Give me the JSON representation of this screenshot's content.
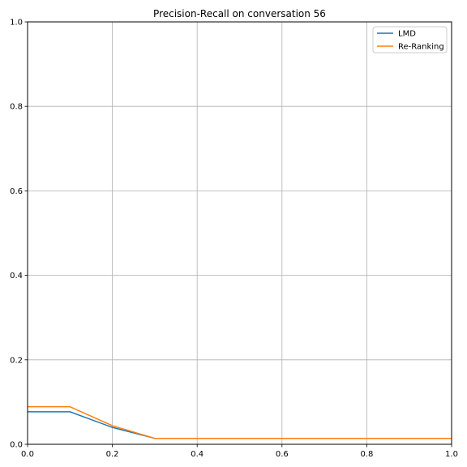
{
  "chart_data": {
    "type": "line",
    "title": "Precision-Recall on conversation 56",
    "xlabel": "",
    "ylabel": "",
    "xlim": [
      0,
      1
    ],
    "ylim": [
      0,
      1
    ],
    "xticks": [
      "0.0",
      "0.2",
      "0.4",
      "0.6",
      "0.8",
      "1.0"
    ],
    "yticks": [
      "0.0",
      "0.2",
      "0.4",
      "0.6",
      "0.8",
      "1.0"
    ],
    "grid": true,
    "legend_position": "top-right",
    "x": [
      0.0,
      0.1,
      0.2,
      0.3,
      0.4,
      0.5,
      0.6,
      0.7,
      0.8,
      0.9,
      1.0
    ],
    "series": [
      {
        "name": "LMD",
        "color": "#1f77b4",
        "values": [
          0.077,
          0.077,
          0.04,
          0.014,
          0.014,
          0.014,
          0.014,
          0.014,
          0.014,
          0.014,
          0.014
        ]
      },
      {
        "name": "Re-Ranking",
        "color": "#ff7f0e",
        "values": [
          0.089,
          0.089,
          0.044,
          0.014,
          0.014,
          0.014,
          0.014,
          0.014,
          0.014,
          0.014,
          0.014
        ]
      }
    ]
  }
}
